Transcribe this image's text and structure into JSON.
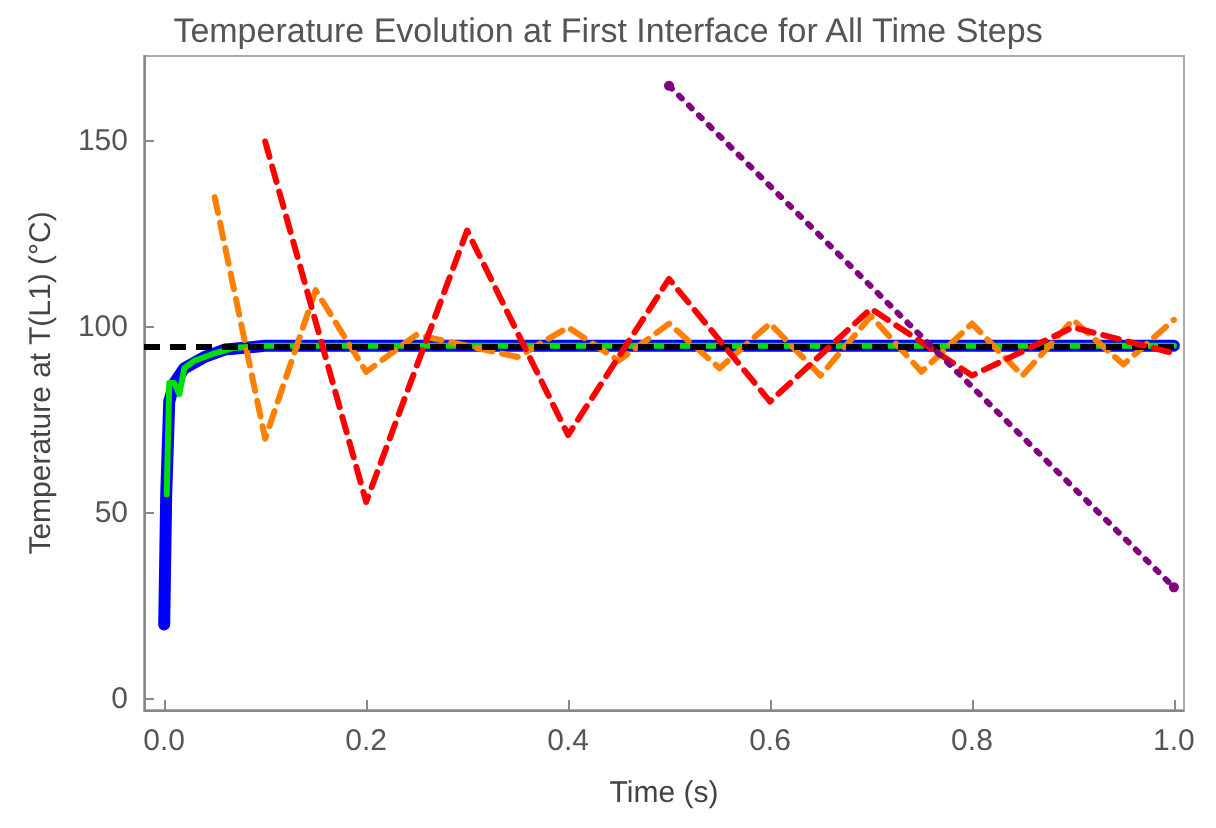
{
  "chart_data": {
    "type": "line",
    "title": "Temperature Evolution at First Interface for All Time Steps",
    "xlabel": "Time (s)",
    "ylabel": "Temperature at T(L1) (°C)",
    "xlim": [
      -0.02,
      1.01
    ],
    "ylim": [
      -3,
      173
    ],
    "xticks": [
      {
        "value": 0,
        "label": "0.0"
      },
      {
        "value": 0.2,
        "label": "0.2"
      },
      {
        "value": 0.4,
        "label": "0.4"
      },
      {
        "value": 0.6,
        "label": "0.6"
      },
      {
        "value": 0.8,
        "label": "0.8"
      },
      {
        "value": 1,
        "label": "1.0"
      }
    ],
    "yticks": [
      0,
      50,
      100,
      150
    ],
    "grid": false,
    "marker": "none",
    "ref_lines": [
      {
        "axis": "y",
        "value": 95,
        "label": null,
        "color": "#000000",
        "line_style": "dashed"
      }
    ],
    "series": [
      {
        "color": "#0000ff",
        "line_style": "solid",
        "x": [
          0,
          0.002,
          0.005,
          0.01,
          0.02,
          0.04,
          0.06,
          0.1,
          1
        ],
        "values": [
          20,
          55,
          80,
          85,
          89,
          92,
          94,
          95,
          95
        ]
      },
      {
        "color": "#00e000",
        "line_style": "solid",
        "x": [
          0.0025,
          0.005,
          0.01,
          0.015,
          0.02,
          0.03,
          0.05,
          0.07,
          0.1,
          1
        ],
        "values": [
          55,
          85,
          85,
          82,
          89,
          91,
          93,
          94.5,
          95,
          95
        ]
      },
      {
        "color": "#ff8000",
        "line_style": "dashed",
        "x": [
          0.05,
          0.1,
          0.15,
          0.2,
          0.25,
          0.3,
          0.35,
          0.4,
          0.45,
          0.5,
          0.55,
          0.6,
          0.65,
          0.7,
          0.75,
          0.8,
          0.85,
          0.9,
          0.95,
          1
        ],
        "values": [
          135,
          70,
          110,
          88,
          98,
          95,
          92,
          100,
          91,
          101,
          89,
          101,
          87,
          103,
          88,
          101,
          87,
          102,
          90,
          102
        ]
      },
      {
        "color": "#ff0000",
        "line_style": "dashed",
        "x": [
          0.1,
          0.2,
          0.3,
          0.4,
          0.5,
          0.6,
          0.7,
          0.8,
          0.9,
          1
        ],
        "values": [
          150,
          53,
          126,
          71,
          113,
          80,
          105,
          87,
          100,
          93
        ]
      },
      {
        "color": "#800080",
        "line_style": "dotted",
        "marker": "circle",
        "x": [
          0.5,
          1
        ],
        "values": [
          165,
          30
        ]
      }
    ]
  }
}
